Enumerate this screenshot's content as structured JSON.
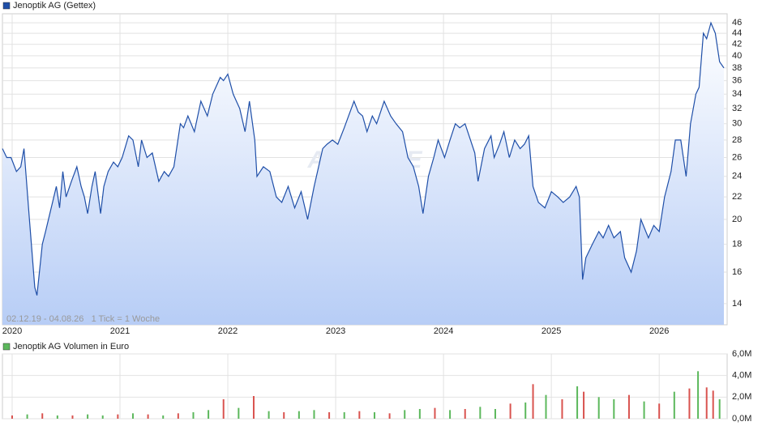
{
  "chart_data": [
    {
      "type": "line",
      "note": "02.12.19 - 04.08.26   1 Tick = 1 Woche",
      "watermark": "ARIVA.DE",
      "log_scale": true,
      "grid": true,
      "fill": true,
      "x": [
        2019.91,
        2019.95,
        2019.99,
        2020.04,
        2020.08,
        2020.11,
        2020.16,
        2020.21,
        2020.23,
        2020.28,
        2020.31,
        2020.35,
        2020.41,
        2020.44,
        2020.47,
        2020.5,
        2020.55,
        2020.6,
        2020.64,
        2020.67,
        2020.7,
        2020.74,
        2020.77,
        2020.82,
        2020.85,
        2020.89,
        2020.94,
        2020.98,
        2021.02,
        2021.08,
        2021.12,
        2021.17,
        2021.2,
        2021.25,
        2021.3,
        2021.36,
        2021.41,
        2021.45,
        2021.5,
        2021.56,
        2021.59,
        2021.63,
        2021.69,
        2021.75,
        2021.81,
        2021.86,
        2021.93,
        2021.96,
        2022.0,
        2022.05,
        2022.11,
        2022.16,
        2022.2,
        2022.25,
        2022.27,
        2022.33,
        2022.39,
        2022.45,
        2022.5,
        2022.56,
        2022.62,
        2022.68,
        2022.74,
        2022.8,
        2022.88,
        2022.92,
        2022.97,
        2023.02,
        2023.08,
        2023.12,
        2023.17,
        2023.21,
        2023.25,
        2023.29,
        2023.34,
        2023.38,
        2023.45,
        2023.51,
        2023.56,
        2023.62,
        2023.67,
        2023.72,
        2023.77,
        2023.81,
        2023.86,
        2023.91,
        2023.95,
        2024.01,
        2024.06,
        2024.11,
        2024.15,
        2024.2,
        2024.25,
        2024.29,
        2024.32,
        2024.38,
        2024.44,
        2024.47,
        2024.52,
        2024.56,
        2024.61,
        2024.66,
        2024.71,
        2024.75,
        2024.79,
        2024.83,
        2024.88,
        2024.94,
        2025.0,
        2025.06,
        2025.11,
        2025.17,
        2025.23,
        2025.26,
        2025.29,
        2025.32,
        2025.38,
        2025.44,
        2025.48,
        2025.53,
        2025.58,
        2025.64,
        2025.68,
        2025.74,
        2025.79,
        2025.83,
        2025.9,
        2025.95,
        2026.0,
        2026.05,
        2026.11,
        2026.15,
        2026.2,
        2026.25,
        2026.29,
        2026.34,
        2026.37,
        2026.41,
        2026.44,
        2026.48,
        2026.52,
        2026.56,
        2026.6
      ],
      "series": [
        {
          "name": "Jenoptik AG (Gettex)",
          "color": "#1f4fa8",
          "values": [
            27,
            26,
            26,
            24.5,
            25,
            27,
            20,
            15,
            14.5,
            18,
            19,
            20.5,
            23,
            21,
            24.5,
            22,
            23.5,
            25,
            23,
            22,
            20.5,
            23,
            24.5,
            20.5,
            23,
            24.5,
            25.5,
            25,
            26,
            28.5,
            28,
            25,
            28,
            26,
            26.5,
            23.5,
            24.5,
            24,
            25,
            30,
            29.5,
            31,
            29,
            33,
            31,
            34,
            36.5,
            36,
            37,
            34,
            32,
            29,
            33,
            28,
            24,
            25,
            24.5,
            22,
            21.5,
            23,
            21,
            22.5,
            20,
            23,
            27,
            27.5,
            28,
            27.5,
            29.5,
            31,
            33,
            31.5,
            31,
            29,
            31,
            30,
            33,
            31,
            30,
            29,
            26,
            25,
            23,
            20.5,
            24,
            26,
            28,
            26,
            28,
            30,
            29.5,
            30,
            28,
            26.5,
            23.5,
            27,
            28.5,
            26,
            27.5,
            29,
            26,
            28,
            27,
            27.5,
            28.5,
            23,
            21.5,
            21,
            22.5,
            22,
            21.5,
            22,
            23,
            22,
            15.5,
            17,
            18,
            19,
            18.5,
            19.5,
            18.5,
            19,
            17,
            16,
            17.5,
            20,
            18.5,
            19.5,
            19,
            22,
            24.5,
            28,
            28,
            24,
            30,
            34,
            35,
            44,
            43,
            46,
            44,
            39,
            38
          ]
        }
      ],
      "xlim": [
        2019.91,
        2026.63
      ],
      "xticks": [
        2020,
        2021,
        2022,
        2023,
        2024,
        2025,
        2026
      ],
      "ylim": [
        12.8,
        47.8
      ],
      "yticks": [
        14,
        16,
        18,
        20,
        22,
        24,
        26,
        28,
        30,
        32,
        34,
        36,
        38,
        40,
        42,
        44,
        46
      ]
    },
    {
      "type": "bar",
      "grid": true,
      "x": [
        2020.0,
        2020.14,
        2020.28,
        2020.42,
        2020.56,
        2020.7,
        2020.84,
        2020.98,
        2021.12,
        2021.26,
        2021.4,
        2021.54,
        2021.68,
        2021.82,
        2021.96,
        2022.1,
        2022.24,
        2022.38,
        2022.52,
        2022.66,
        2022.8,
        2022.94,
        2023.08,
        2023.22,
        2023.36,
        2023.5,
        2023.64,
        2023.78,
        2023.92,
        2024.06,
        2024.2,
        2024.34,
        2024.48,
        2024.62,
        2024.76,
        2024.83,
        2024.95,
        2025.1,
        2025.24,
        2025.3,
        2025.44,
        2025.58,
        2025.72,
        2025.86,
        2026.0,
        2026.14,
        2026.28,
        2026.36,
        2026.44,
        2026.5,
        2026.56
      ],
      "series": [
        {
          "name": "Jenoptik AG Volumen in Euro",
          "color": "#5cb85c",
          "values": [
            300000,
            400000,
            500000,
            300000,
            300000,
            400000,
            300000,
            400000,
            500000,
            400000,
            300000,
            500000,
            600000,
            800000,
            1800000,
            1000000,
            2100000,
            700000,
            600000,
            700000,
            800000,
            600000,
            600000,
            700000,
            600000,
            500000,
            800000,
            900000,
            1000000,
            800000,
            900000,
            1100000,
            900000,
            1400000,
            1500000,
            3200000,
            2200000,
            1800000,
            3000000,
            2500000,
            2000000,
            1800000,
            2200000,
            1600000,
            1400000,
            2500000,
            2800000,
            4400000,
            2900000,
            2600000,
            1800000
          ]
        }
      ],
      "bar_colors": [
        "#d9534f",
        "#5cb85c",
        "#d9534f",
        "#5cb85c",
        "#d9534f",
        "#5cb85c",
        "#5cb85c",
        "#d9534f",
        "#5cb85c",
        "#d9534f",
        "#5cb85c",
        "#d9534f",
        "#5cb85c",
        "#5cb85c",
        "#d9534f",
        "#5cb85c",
        "#d9534f",
        "#5cb85c",
        "#d9534f",
        "#5cb85c",
        "#5cb85c",
        "#d9534f",
        "#5cb85c",
        "#d9534f",
        "#5cb85c",
        "#d9534f",
        "#5cb85c",
        "#5cb85c",
        "#d9534f",
        "#5cb85c",
        "#d9534f",
        "#5cb85c",
        "#5cb85c",
        "#d9534f",
        "#5cb85c",
        "#d9534f",
        "#5cb85c",
        "#d9534f",
        "#5cb85c",
        "#d9534f",
        "#5cb85c",
        "#5cb85c",
        "#d9534f",
        "#5cb85c",
        "#d9534f",
        "#5cb85c",
        "#d9534f",
        "#5cb85c",
        "#d9534f",
        "#d9534f",
        "#5cb85c"
      ],
      "xlim": [
        2019.91,
        2026.63
      ],
      "xticks": [
        2020,
        2021,
        2022,
        2023,
        2024,
        2025,
        2026
      ],
      "ylim": [
        0,
        6000000
      ],
      "yticks": [
        {
          "value": 0,
          "label": "0,0M"
        },
        {
          "value": 2000000,
          "label": "2,0M"
        },
        {
          "value": 4000000,
          "label": "4,0M"
        },
        {
          "value": 6000000,
          "label": "6,0M"
        }
      ]
    }
  ]
}
